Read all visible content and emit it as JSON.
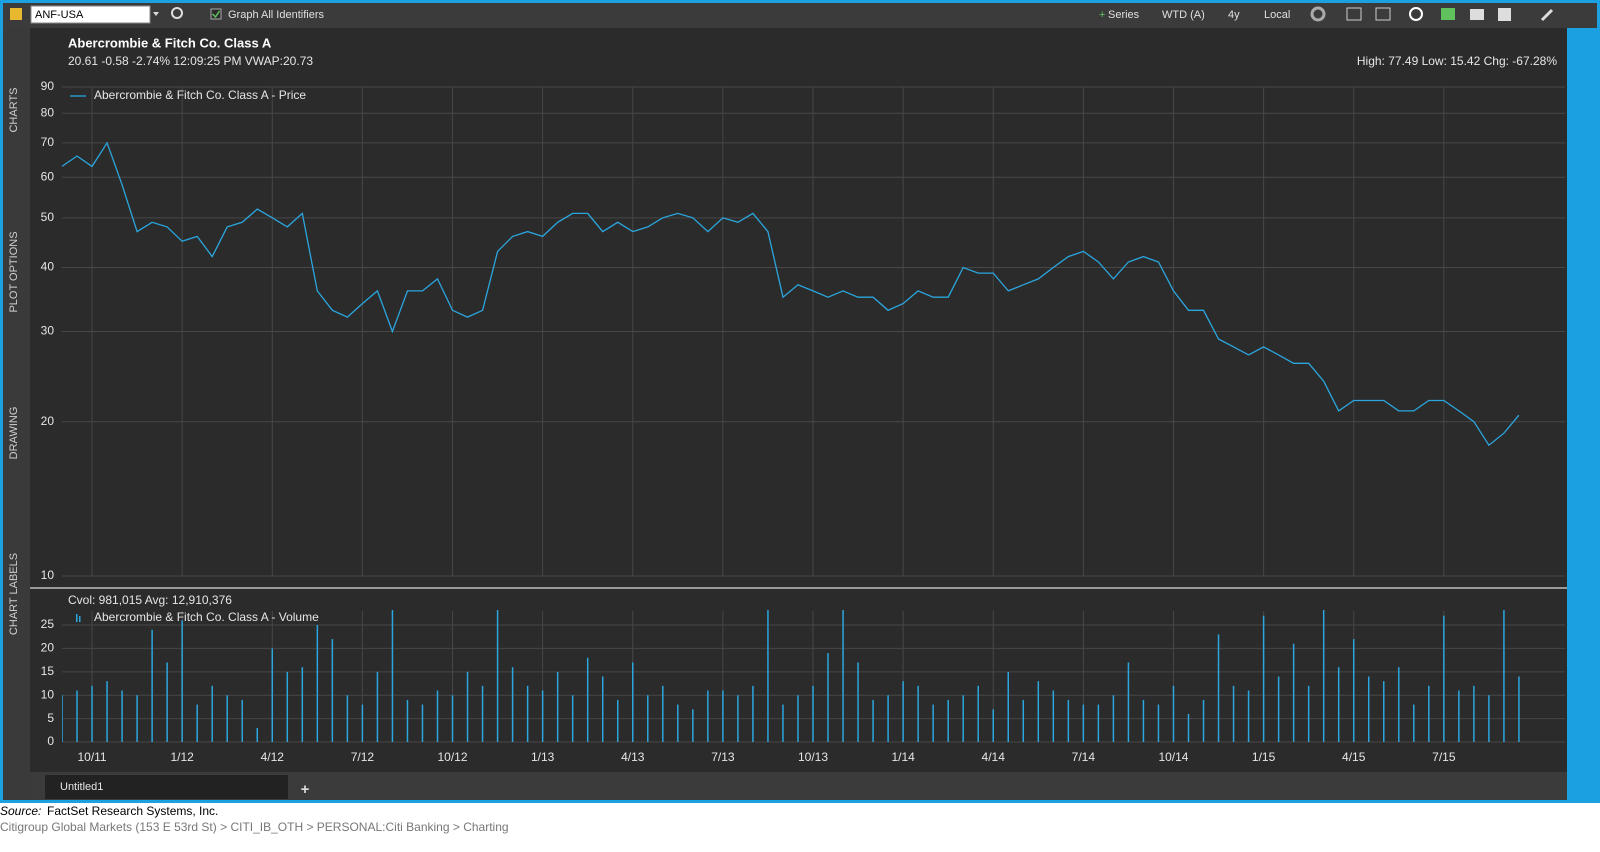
{
  "toolbar": {
    "symbol": "ANF-USA",
    "graph_all": "Graph All Identifiers",
    "series": "Series",
    "frequency": "WTD (A)",
    "period": "4y",
    "time_zone": "Local"
  },
  "side_tabs": [
    "CHARTS",
    "PLOT OPTIONS",
    "DRAWING",
    "CHART LABELS"
  ],
  "chart_data": [
    {
      "type": "line",
      "title": "Abercrombie & Fitch Co. Class A",
      "subtitle": "20.61 -0.58 -2.74% 12:09:25 PM VWAP:20.73",
      "annotation": "High: 77.49 Low: 15.42 Chg: -67.28%",
      "series": [
        {
          "name": "Abercrombie & Fitch Co. Class A - Price",
          "color": "#2ba6de",
          "values": [
            63,
            66,
            63,
            70,
            58,
            47,
            49,
            48,
            45,
            46,
            42,
            48,
            49,
            52,
            50,
            48,
            51,
            36,
            33,
            32,
            34,
            36,
            30,
            36,
            36,
            38,
            33,
            32,
            33,
            43,
            46,
            47,
            46,
            49,
            51,
            51,
            47,
            49,
            47,
            48,
            50,
            51,
            50,
            47,
            50,
            49,
            51,
            47,
            35,
            37,
            36,
            35,
            36,
            35,
            35,
            33,
            34,
            36,
            35,
            35,
            40,
            39,
            39,
            36,
            37,
            38,
            40,
            42,
            43,
            41,
            38,
            41,
            42,
            41,
            36,
            33,
            33,
            29,
            28,
            27,
            28,
            27,
            26,
            26,
            24,
            21,
            22,
            22,
            22,
            21,
            21,
            22,
            22,
            21,
            20,
            18,
            19,
            20.6
          ]
        }
      ],
      "ylim": [
        10,
        90
      ],
      "yticks": [
        10,
        20,
        30,
        40,
        50,
        60,
        70,
        80,
        90
      ],
      "log_scale": true,
      "grid": true
    },
    {
      "type": "bar",
      "title": "Cvol: 981,015 Avg: 12,910,376",
      "categories": [
        null,
        null,
        "10/11",
        null,
        null,
        null,
        null,
        null,
        "1/12",
        null,
        null,
        null,
        null,
        null,
        "4/12",
        null,
        null,
        null,
        null,
        null,
        "7/12",
        null,
        null,
        null,
        null,
        null,
        "10/12",
        null,
        null,
        null,
        null,
        null,
        "1/13",
        null,
        null,
        null,
        null,
        null,
        "4/13",
        null,
        null,
        null,
        null,
        null,
        "7/13",
        null,
        null,
        null,
        null,
        null,
        "10/13",
        null,
        null,
        null,
        null,
        null,
        "1/14",
        null,
        null,
        null,
        null,
        null,
        "4/14",
        null,
        null,
        null,
        null,
        null,
        "7/14",
        null,
        null,
        null,
        null,
        null,
        "10/14",
        null,
        null,
        null,
        null,
        null,
        "1/15",
        null,
        null,
        null,
        null,
        null,
        "4/15",
        null,
        null,
        null,
        null,
        null,
        "7/15",
        null,
        null,
        null,
        null,
        null
      ],
      "series": [
        {
          "name": "Abercrombie & Fitch Co. Class A - Volume",
          "color": "#2ba6de",
          "values": [
            10,
            11,
            12,
            13,
            11,
            10,
            24,
            17,
            26,
            8,
            12,
            10,
            9,
            3,
            20,
            15,
            16,
            25,
            22,
            10,
            8,
            15,
            30,
            9,
            8,
            11,
            10,
            15,
            12,
            30,
            16,
            12,
            11,
            15,
            10,
            18,
            14,
            9,
            17,
            10,
            12,
            8,
            7,
            11,
            11,
            10,
            12,
            30,
            8,
            10,
            12,
            19,
            30,
            17,
            9,
            10,
            13,
            12,
            8,
            9,
            10,
            12,
            7,
            15,
            9,
            13,
            11,
            9,
            8,
            8,
            10,
            17,
            9,
            8,
            12,
            6,
            9,
            23,
            12,
            11,
            27,
            14,
            21,
            12,
            30,
            16,
            22,
            14,
            13,
            16,
            8,
            12,
            27,
            11,
            12,
            10,
            30,
            14
          ]
        }
      ],
      "ylim": [
        0,
        28
      ],
      "yticks": [
        0,
        5,
        10,
        15,
        20,
        25
      ],
      "grid": true
    }
  ],
  "tabs": [
    "Untitled1"
  ],
  "footer": {
    "source_label": "Source:",
    "source": "FactSet Research Systems, Inc.",
    "breadcrumb": "Citigroup Global Markets (153 E 53rd St) > CITI_IB_OTH > PERSONAL:Citi Banking > Charting"
  }
}
